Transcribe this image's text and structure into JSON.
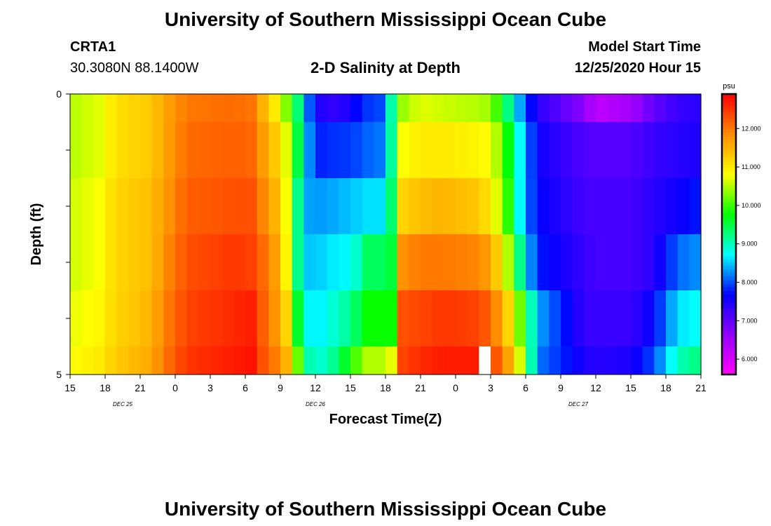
{
  "page": {
    "title": "University of Southern Mississippi Ocean Cube",
    "footer_title": "University of Southern Mississippi Ocean Cube",
    "station_id": "CRTA1",
    "station_coords": "30.3080N 88.1400W",
    "plot_subtitle": "2-D Salinity at Depth",
    "model_label": "Model Start Time",
    "model_start": "12/25/2020 Hour 15"
  },
  "chart_data": {
    "type": "heatmap",
    "title": "2-D Salinity at Depth",
    "xlabel": "Forecast Time(Z)",
    "ylabel": "Depth (ft)",
    "x_tick_labels": [
      "15",
      "18",
      "21",
      "0",
      "3",
      "6",
      "9",
      "12",
      "15",
      "18",
      "21",
      "0",
      "3",
      "6",
      "9",
      "12",
      "15",
      "18",
      "21"
    ],
    "x_hours": [
      0,
      3,
      6,
      9,
      12,
      15,
      18,
      21,
      24,
      27,
      30,
      33,
      36,
      39,
      42,
      45,
      48,
      51,
      54
    ],
    "date_labels": [
      {
        "text": "DEC 25",
        "hour": 4.5
      },
      {
        "text": "DEC 26",
        "hour": 21
      },
      {
        "text": "DEC 27",
        "hour": 43.5
      }
    ],
    "y_tick_labels": [
      "0",
      "5"
    ],
    "ylim": [
      0,
      5
    ],
    "depth_layers": [
      "0-0.5",
      "0.5-1.5",
      "1.5-2.5",
      "2.5-3.5",
      "3.5-4.5",
      "4.5-5"
    ],
    "colorbar": {
      "unit": "psu",
      "range": [
        5.6,
        12.9
      ],
      "ticks": [
        "6.000",
        "7.000",
        "8.000",
        "9.000",
        "10.000",
        "11.000",
        "12.000"
      ],
      "tick_values": [
        6,
        7,
        8,
        9,
        10,
        11,
        12
      ],
      "colors": [
        "#ff00ff",
        "#9400ff",
        "#0000ff",
        "#00ffff",
        "#00ff00",
        "#ffff00",
        "#ff8c00",
        "#ff0000"
      ]
    },
    "keyframes": [
      {
        "t": 0,
        "values": [
          10.5,
          10.5,
          10.6,
          10.6,
          10.7,
          10.8
        ]
      },
      {
        "t": 2.5,
        "values": [
          10.7,
          10.7,
          10.8,
          10.8,
          10.9,
          11.0
        ]
      },
      {
        "t": 4,
        "values": [
          11.1,
          11.1,
          11.2,
          11.2,
          11.2,
          11.3
        ]
      },
      {
        "t": 7,
        "values": [
          11.3,
          11.3,
          11.4,
          11.4,
          11.5,
          11.6
        ]
      },
      {
        "t": 8,
        "values": [
          11.6,
          11.6,
          11.7,
          11.8,
          11.9,
          12.0
        ]
      },
      {
        "t": 10,
        "values": [
          12.0,
          12.1,
          12.2,
          12.3,
          12.4,
          12.5
        ]
      },
      {
        "t": 14,
        "values": [
          12.1,
          12.2,
          12.3,
          12.5,
          12.6,
          12.7
        ]
      },
      {
        "t": 16,
        "values": [
          12.0,
          12.1,
          12.3,
          12.4,
          12.7,
          12.8
        ]
      },
      {
        "t": 16.5,
        "values": [
          11.5,
          11.7,
          11.9,
          12.1,
          12.2,
          12.3
        ]
      },
      {
        "t": 17.5,
        "values": [
          11.0,
          11.3,
          11.5,
          11.7,
          11.8,
          12.0
        ]
      },
      {
        "t": 18.5,
        "values": [
          10.3,
          10.7,
          10.8,
          10.9,
          11.2,
          11.5
        ]
      },
      {
        "t": 19.5,
        "values": [
          9.3,
          9.5,
          9.2,
          9.2,
          9.6,
          10.2
        ]
      },
      {
        "t": 20,
        "values": [
          8.6,
          8.7,
          8.4,
          8.5,
          8.8,
          9.3
        ]
      },
      {
        "t": 21,
        "values": [
          7.5,
          7.8,
          8.3,
          8.5,
          8.6,
          8.8
        ]
      },
      {
        "t": 23,
        "values": [
          7.3,
          7.9,
          8.4,
          8.7,
          9.0,
          9.3
        ]
      },
      {
        "t": 24,
        "values": [
          7.6,
          7.9,
          8.5,
          8.7,
          9.2,
          9.9
        ]
      },
      {
        "t": 25.5,
        "values": [
          7.9,
          8.1,
          8.6,
          9.4,
          9.8,
          10.5
        ]
      },
      {
        "t": 27,
        "values": [
          8.0,
          8.2,
          8.6,
          9.4,
          9.8,
          10.5
        ]
      },
      {
        "t": 27.7,
        "values": [
          9.5,
          9.5,
          9.6,
          9.6,
          9.8,
          10.8
        ]
      },
      {
        "t": 28.5,
        "values": [
          10.4,
          10.8,
          11.2,
          11.8,
          12.3,
          12.4
        ]
      },
      {
        "t": 30,
        "values": [
          10.7,
          11.0,
          11.4,
          12.0,
          12.4,
          12.6
        ]
      },
      {
        "t": 32,
        "values": [
          10.6,
          11.0,
          11.5,
          12.0,
          12.5,
          12.7
        ]
      },
      {
        "t": 35,
        "values": [
          10.5,
          10.9,
          11.3,
          11.9,
          12.4,
          12.7
        ]
      },
      {
        "t": 36,
        "values": [
          10.4,
          10.8,
          11.0,
          11.6,
          12.1,
          12.5
        ]
      },
      {
        "t": 37,
        "values": [
          9.7,
          10.2,
          10.4,
          11.0,
          11.6,
          12.0
        ]
      },
      {
        "t": 38,
        "values": [
          8.8,
          9.3,
          9.5,
          10.0,
          10.8,
          11.3
        ]
      },
      {
        "t": 38.7,
        "values": [
          8.2,
          8.5,
          8.4,
          8.9,
          10.0,
          10.4
        ]
      },
      {
        "t": 40,
        "values": [
          7.4,
          7.6,
          7.7,
          7.8,
          8.4,
          8.2
        ]
      },
      {
        "t": 44,
        "values": [
          6.7,
          7.1,
          7.2,
          7.3,
          7.3,
          7.5
        ]
      },
      {
        "t": 45,
        "values": [
          6.2,
          7.1,
          7.2,
          7.2,
          7.3,
          7.4
        ]
      },
      {
        "t": 48,
        "values": [
          6.5,
          7.1,
          7.2,
          7.2,
          7.3,
          7.5
        ]
      },
      {
        "t": 50,
        "values": [
          7.0,
          7.3,
          7.4,
          7.4,
          7.7,
          8.0
        ]
      },
      {
        "t": 52,
        "values": [
          7.3,
          7.4,
          7.6,
          8.1,
          8.6,
          9.0
        ]
      },
      {
        "t": 54,
        "values": [
          7.4,
          7.5,
          7.8,
          8.3,
          8.8,
          9.3
        ]
      }
    ],
    "gaps": [
      {
        "hour": 35,
        "layer": "4.5-5",
        "value": null
      }
    ]
  }
}
